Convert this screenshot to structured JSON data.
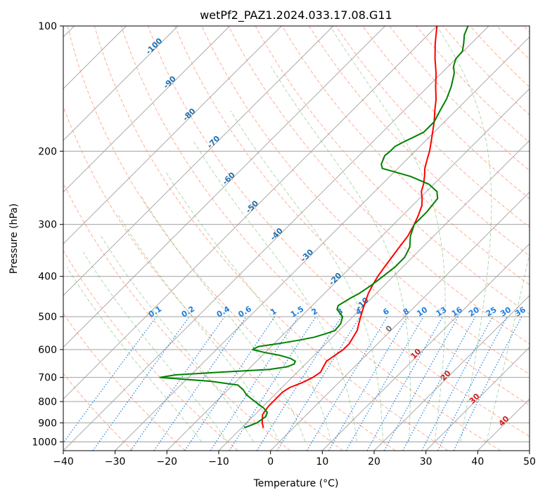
{
  "chart_data": {
    "type": "line",
    "title": "wetPf2_PAZ1.2024.033.17.08.G11",
    "xlabel": "Temperature (°C)",
    "ylabel": "Pressure (hPa)",
    "xlim": [
      -40,
      50
    ],
    "ylim": [
      1050,
      100
    ],
    "y_scale": "log",
    "grid": true,
    "x_ticks": [
      -40,
      -30,
      -20,
      -10,
      0,
      10,
      20,
      30,
      40,
      50
    ],
    "y_ticks": [
      100,
      200,
      300,
      400,
      500,
      600,
      700,
      800,
      900,
      1000
    ],
    "skew": "skew-T",
    "series": [
      {
        "color": "#ff0000",
        "pressure": [
          925,
          900,
          860,
          820,
          790,
          760,
          740,
          720,
          700,
          680,
          660,
          640,
          620,
          600,
          580,
          560,
          540,
          520,
          500,
          480,
          460,
          440,
          420,
          400,
          380,
          360,
          340,
          320,
          300,
          285,
          270,
          260,
          250,
          240,
          230,
          220,
          210,
          200,
          190,
          180,
          170,
          160,
          150,
          140,
          130,
          120,
          110,
          100
        ],
        "temperature": [
          -5.8,
          -7,
          -8.5,
          -9,
          -9,
          -9,
          -8.5,
          -7,
          -6,
          -5.5,
          -6,
          -6.5,
          -6,
          -5.5,
          -5.5,
          -6,
          -6.5,
          -7.5,
          -8.5,
          -9.5,
          -10.5,
          -11.5,
          -12.3,
          -13,
          -13.5,
          -14,
          -14.5,
          -15,
          -16,
          -17,
          -18.2,
          -19.5,
          -21,
          -22,
          -23.3,
          -24.8,
          -26,
          -27.2,
          -28.7,
          -30.3,
          -32,
          -34,
          -36,
          -38.5,
          -41,
          -44,
          -47,
          -50
        ]
      },
      {
        "color": "#008000",
        "pressure": [
          925,
          900,
          870,
          850,
          830,
          810,
          790,
          770,
          750,
          730,
          715,
          700,
          690,
          680,
          670,
          660,
          650,
          640,
          630,
          620,
          610,
          600,
          590,
          580,
          570,
          560,
          550,
          540,
          520,
          500,
          480,
          470,
          460,
          450,
          440,
          420,
          400,
          380,
          360,
          340,
          320,
          300,
          280,
          260,
          250,
          240,
          230,
          225,
          220,
          215,
          210,
          205,
          200,
          195,
          190,
          185,
          180,
          175,
          170,
          160,
          150,
          140,
          130,
          125,
          120,
          115,
          110,
          105,
          100
        ],
        "temperature": [
          -9.5,
          -8,
          -7.5,
          -8,
          -9.5,
          -11.5,
          -13.5,
          -15.5,
          -17,
          -19,
          -25,
          -35.5,
          -33,
          -25,
          -16,
          -13,
          -12.2,
          -12.5,
          -14,
          -16.5,
          -20,
          -23,
          -22.5,
          -19,
          -16,
          -13.5,
          -12,
          -10.8,
          -11,
          -12,
          -14.5,
          -15,
          -14.5,
          -14,
          -13.3,
          -12.5,
          -12,
          -11.5,
          -11.5,
          -12.5,
          -14.5,
          -16,
          -16,
          -16.5,
          -18,
          -21,
          -26,
          -29.5,
          -33,
          -34,
          -34.5,
          -35,
          -34.8,
          -34.8,
          -34,
          -33,
          -32,
          -32,
          -32,
          -33,
          -34,
          -35.5,
          -37.5,
          -39,
          -40,
          -40.2,
          -41.5,
          -43,
          -44
        ]
      }
    ],
    "mixing_ratio_labels": [
      "0.1",
      "0.2",
      "0.4",
      "0.6",
      "1",
      "1.5",
      "2",
      "3",
      "4",
      "6",
      "8",
      "10",
      "13",
      "16",
      "20",
      "25",
      "30",
      "36"
    ],
    "mixing_ratios": [
      0.1,
      0.2,
      0.4,
      0.6,
      1,
      1.5,
      2,
      3,
      4,
      6,
      8,
      10,
      13,
      16,
      20,
      25,
      30,
      36
    ],
    "isotherm_labels": [
      "-100",
      "-90",
      "-80",
      "-70",
      "-60",
      "-50",
      "-40",
      "-30",
      "-20",
      "-10",
      "0",
      "10",
      "20",
      "30",
      "40"
    ]
  },
  "colors": {
    "temperature": "#ff0000",
    "dewpoint": "#008000",
    "dry_adiabat": "#ff8c69",
    "moist_adiabat": "#5fb85f",
    "mixing_ratio": "#1e7fe0",
    "grid": "#a0a0a0",
    "isotherm_label_cold": "#1f6fb0",
    "isotherm_label_zero": "#707070",
    "isotherm_label_warm": "#d02020"
  }
}
